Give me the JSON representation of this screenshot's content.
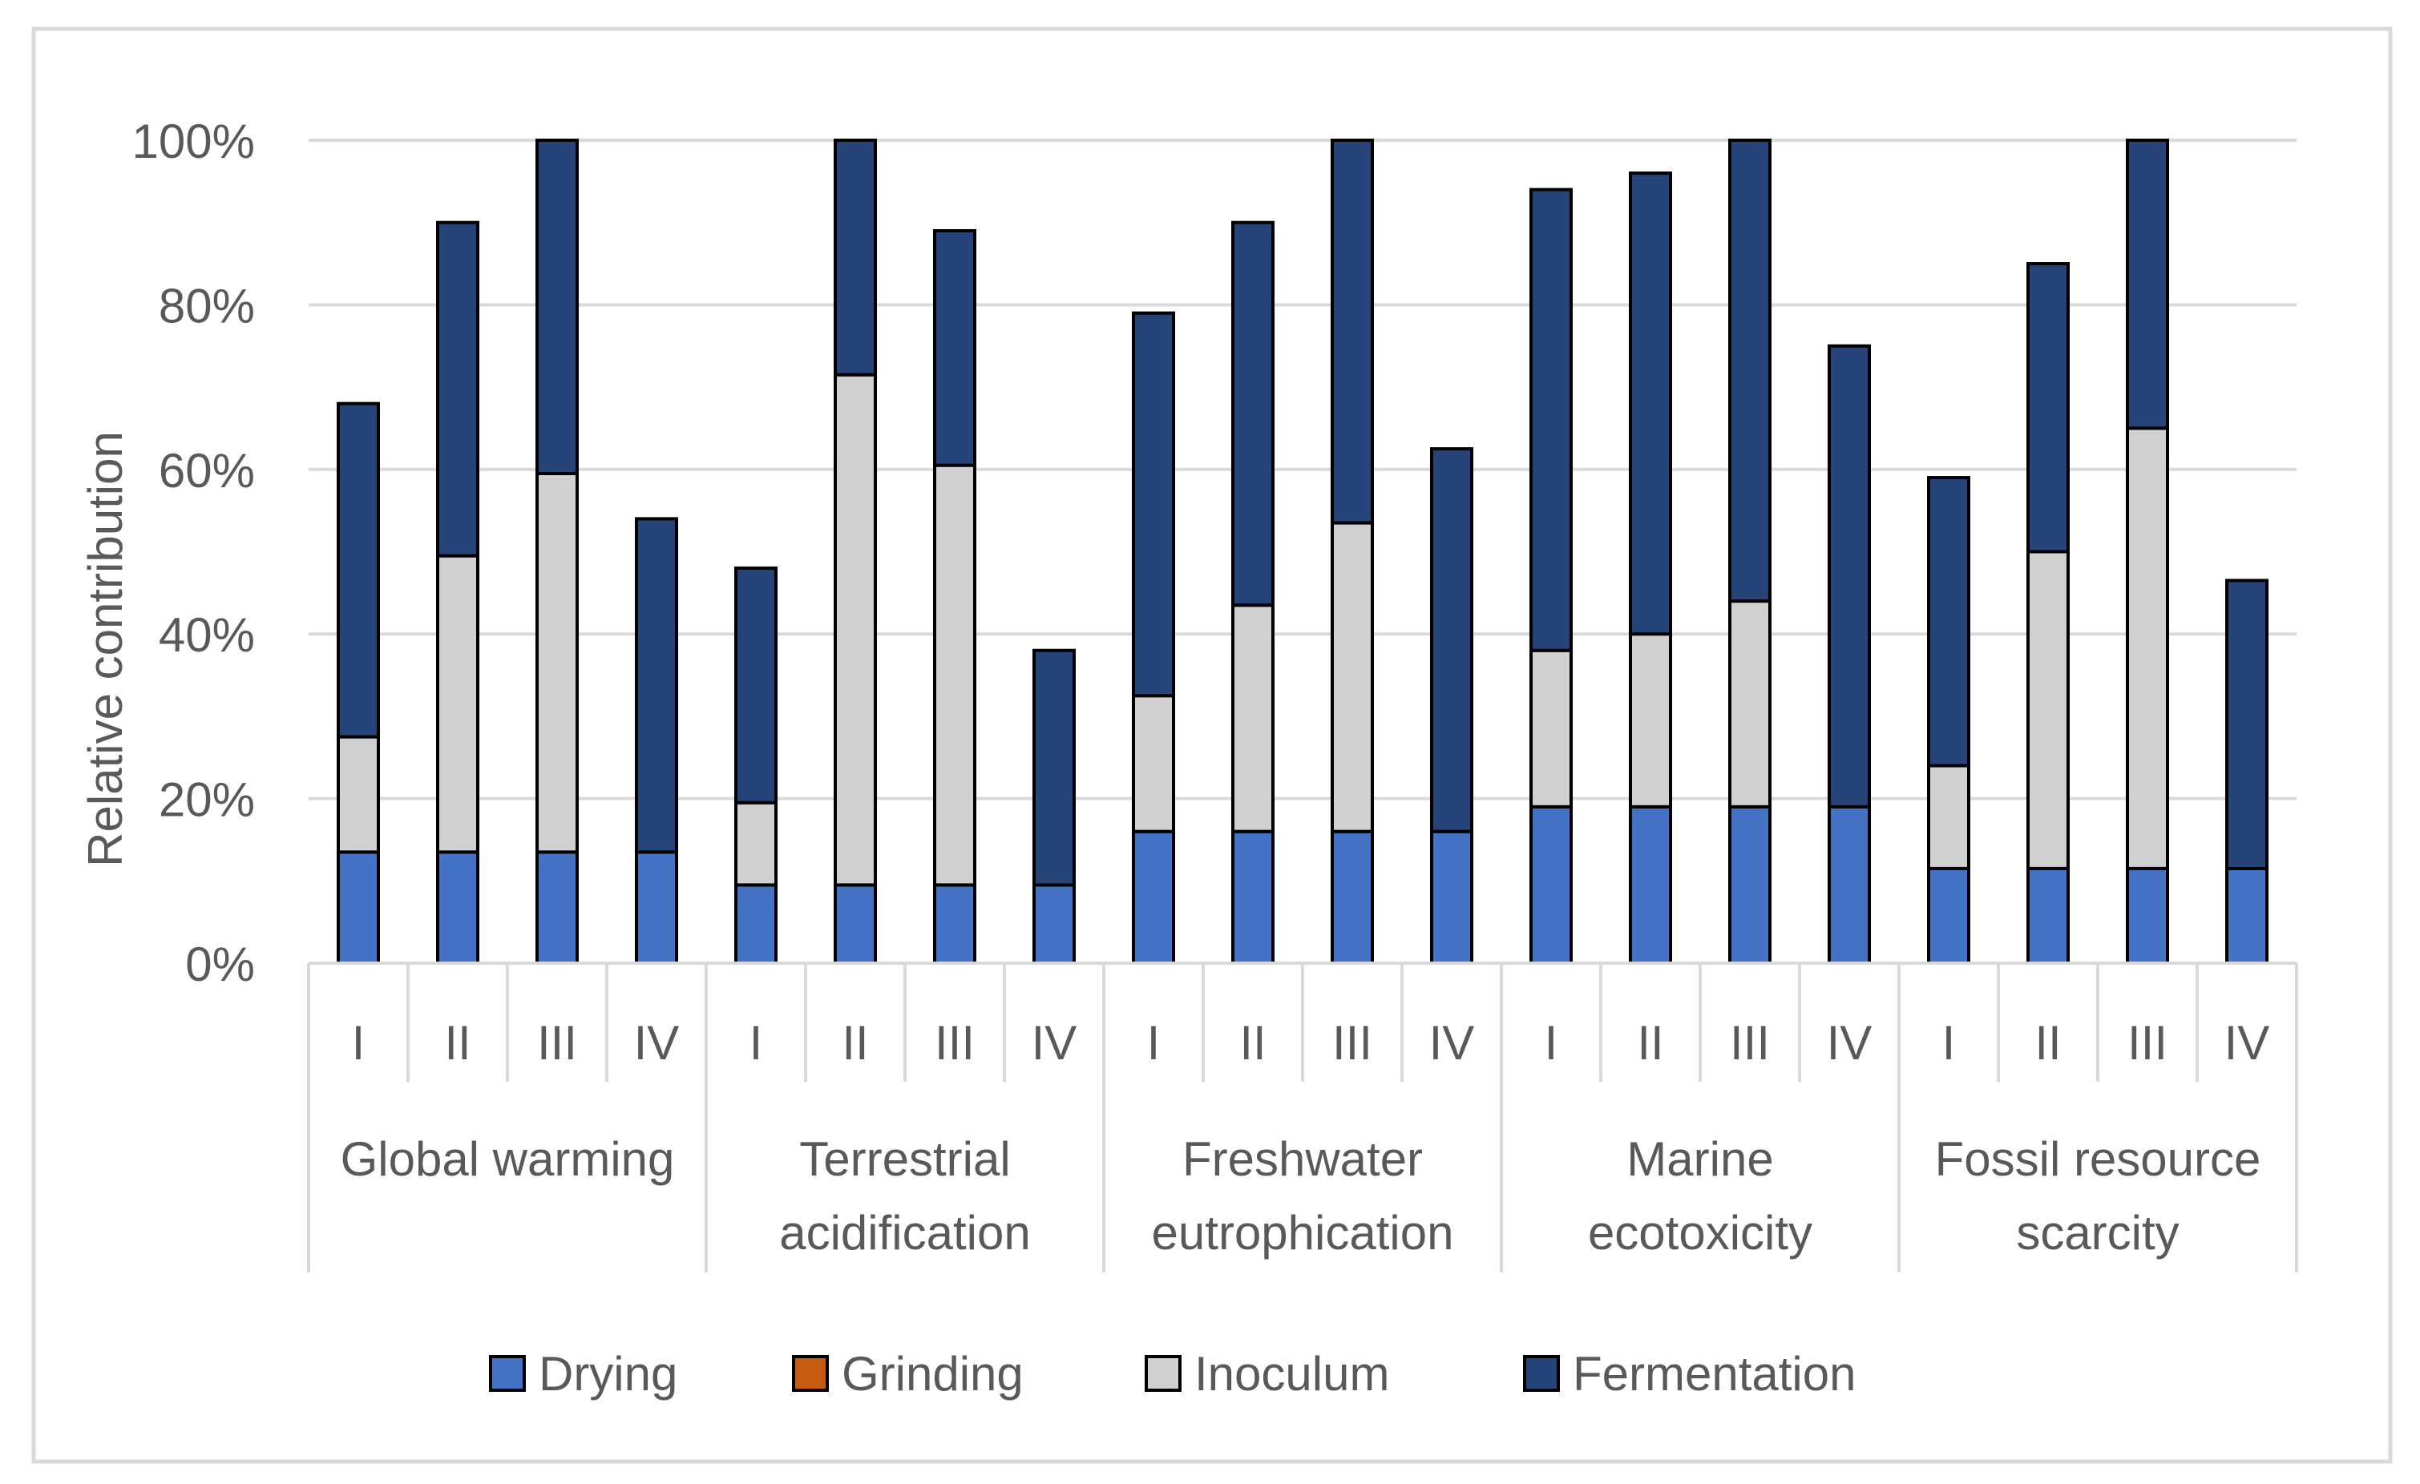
{
  "chart_data": {
    "type": "bar",
    "stacked": true,
    "ylabel": "Relative contribution",
    "ylim": [
      0,
      100
    ],
    "yticks": [
      "0%",
      "20%",
      "40%",
      "60%",
      "80%",
      "100%"
    ],
    "grid": true,
    "legend_position": "bottom",
    "groups": [
      "Global warming",
      "Terrestrial acidification",
      "Freshwater eutrophication",
      "Marine ecotoxicity",
      "Fossil resource scarcity"
    ],
    "group_label_lines": [
      [
        "Global warming"
      ],
      [
        "Terrestrial",
        "acidification"
      ],
      [
        "Freshwater",
        "eutrophication"
      ],
      [
        "Marine",
        "ecotoxicity"
      ],
      [
        "Fossil resource",
        "scarcity"
      ]
    ],
    "subcategories": [
      "I",
      "II",
      "III",
      "IV"
    ],
    "series": [
      {
        "name": "Drying",
        "color": "#4472C4",
        "values": [
          13.5,
          13.5,
          13.5,
          13.5,
          9.5,
          9.5,
          9.5,
          9.5,
          16,
          16,
          16,
          16,
          19,
          19,
          19,
          19,
          11.5,
          11.5,
          11.5,
          11.5
        ]
      },
      {
        "name": "Grinding",
        "color": "#C55A11",
        "values": [
          0,
          0,
          0,
          0,
          0,
          0,
          0,
          0,
          0,
          0,
          0,
          0,
          0,
          0,
          0,
          0,
          0,
          0,
          0,
          0
        ]
      },
      {
        "name": "Inoculum",
        "color": "#D0D0D0",
        "values": [
          14,
          36,
          46,
          0,
          10,
          62,
          51,
          0,
          16.5,
          27.5,
          37.5,
          0,
          19,
          21,
          25,
          0,
          12.5,
          38.5,
          53.5,
          0
        ]
      },
      {
        "name": "Fermentation",
        "color": "#264478",
        "values": [
          40.5,
          40.5,
          40.5,
          40.5,
          28.5,
          28.5,
          28.5,
          28.5,
          46.5,
          46.5,
          46.5,
          46.5,
          56,
          56,
          56,
          56,
          35,
          35,
          35,
          35
        ]
      }
    ]
  }
}
